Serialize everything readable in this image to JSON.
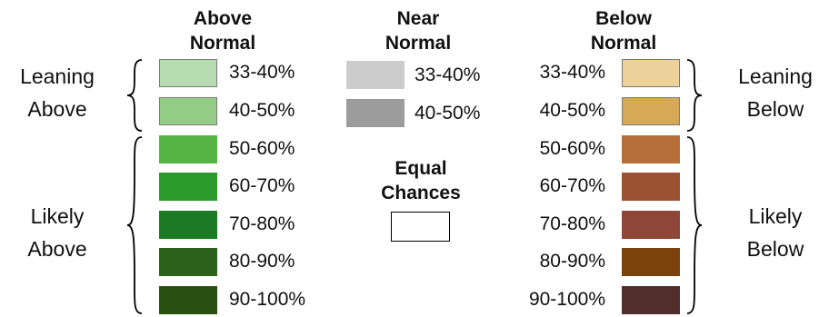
{
  "headers": {
    "above_l1": "Above",
    "above_l2": "Normal",
    "near_l1": "Near",
    "near_l2": "Normal",
    "below_l1": "Below",
    "below_l2": "Normal"
  },
  "side_labels": {
    "leaning_above_l1": "Leaning",
    "leaning_above_l2": "Above",
    "likely_above_l1": "Likely",
    "likely_above_l2": "Above",
    "leaning_below_l1": "Leaning",
    "leaning_below_l2": "Below",
    "likely_below_l1": "Likely",
    "likely_below_l2": "Below"
  },
  "above": [
    {
      "label": "33-40%",
      "color": "#b7dcb2"
    },
    {
      "label": "40-50%",
      "color": "#94ce86"
    },
    {
      "label": "50-60%",
      "color": "#55b444"
    },
    {
      "label": "60-70%",
      "color": "#2a9a2d"
    },
    {
      "label": "70-80%",
      "color": "#1d7a24"
    },
    {
      "label": "80-90%",
      "color": "#2c6119"
    },
    {
      "label": "90-100%",
      "color": "#2a5112"
    }
  ],
  "near": [
    {
      "label": "33-40%",
      "color": "#cccccc"
    },
    {
      "label": "40-50%",
      "color": "#9c9c9c"
    }
  ],
  "equal": {
    "l1": "Equal",
    "l2": "Chances",
    "color": "#ffffff"
  },
  "below": [
    {
      "label": "33-40%",
      "color": "#edd19a"
    },
    {
      "label": "40-50%",
      "color": "#d6a957"
    },
    {
      "label": "50-60%",
      "color": "#b76e38"
    },
    {
      "label": "60-70%",
      "color": "#9a5233"
    },
    {
      "label": "70-80%",
      "color": "#8e4737"
    },
    {
      "label": "80-90%",
      "color": "#7c420d"
    },
    {
      "label": "90-100%",
      "color": "#4f2e2c"
    }
  ]
}
